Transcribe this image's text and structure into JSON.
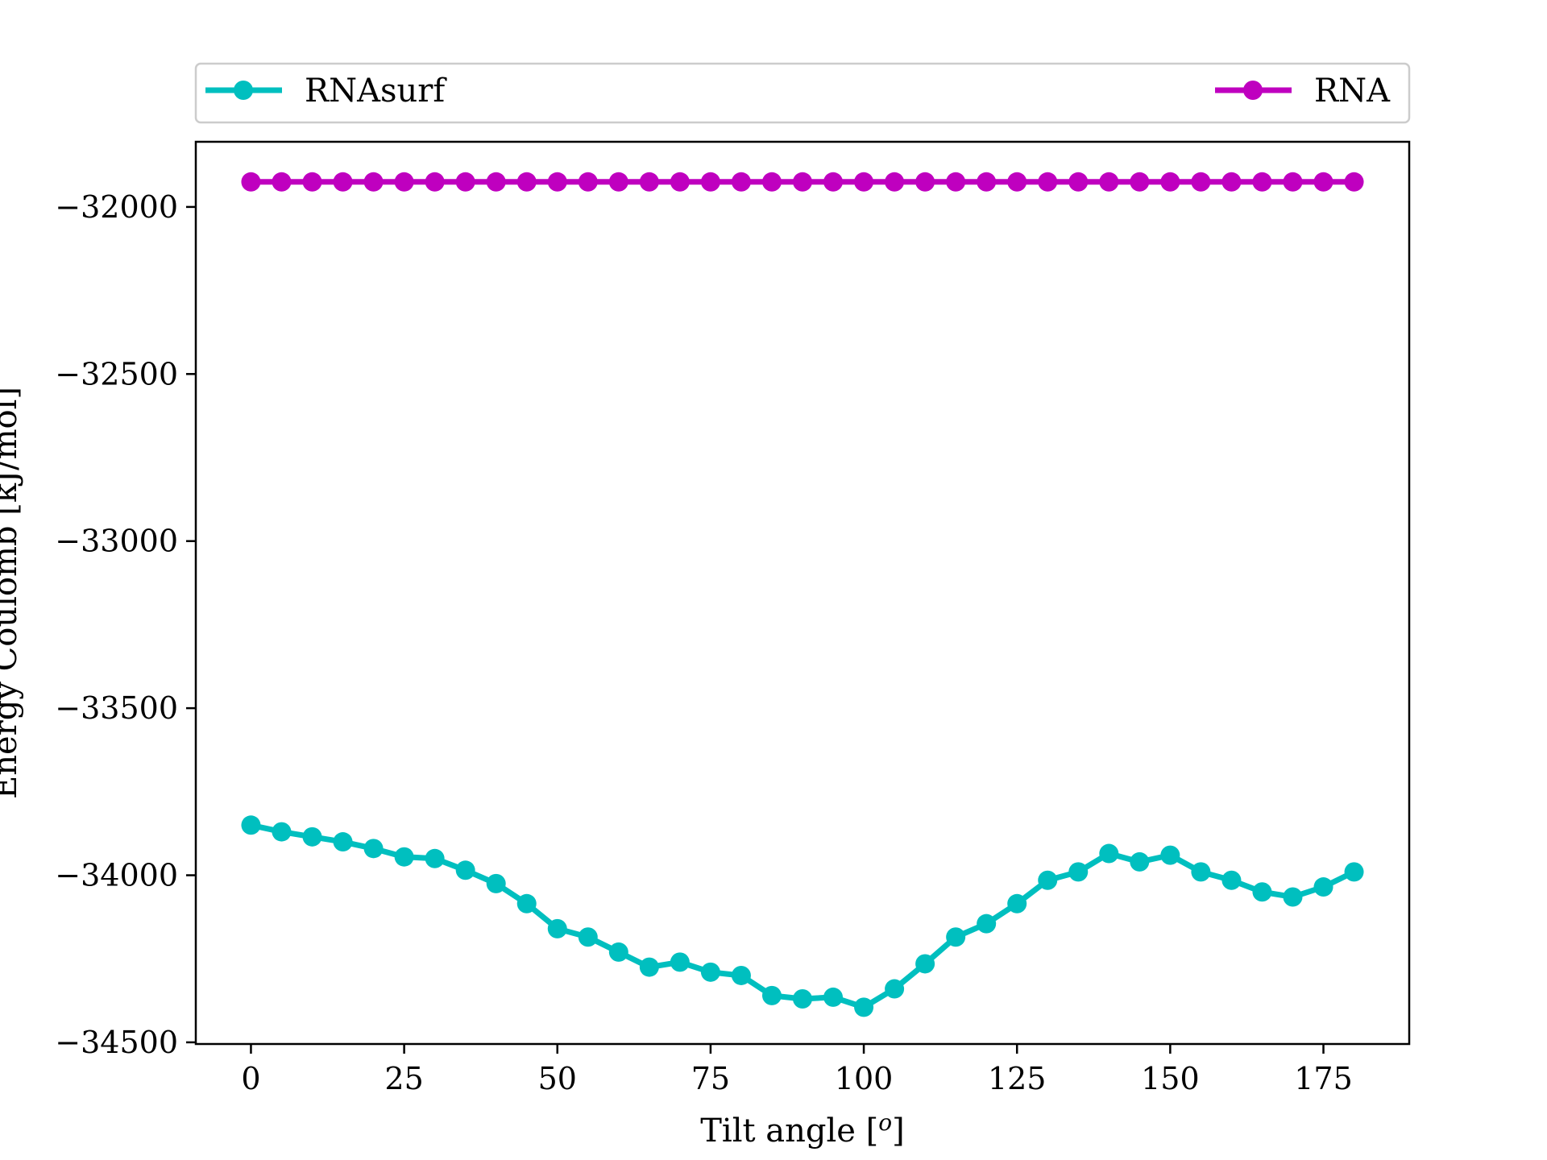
{
  "chart_data": {
    "type": "line",
    "title": "",
    "xlabel": "Tilt angle [$^o$]",
    "xlabel_parts": {
      "prefix": "Tilt angle [",
      "sup": "o",
      "suffix": "]"
    },
    "ylabel": "Energy Coulomb [kJ/mol]",
    "xlim": [
      -9,
      189
    ],
    "ylim": [
      -34505,
      -31805
    ],
    "xticks": [
      0,
      25,
      50,
      75,
      100,
      125,
      150,
      175
    ],
    "yticks": [
      -32000,
      -32500,
      -33000,
      -33500,
      -34000,
      -34500
    ],
    "ytick_labels": [
      "−32000",
      "−32500",
      "−33000",
      "−33500",
      "−34000",
      "−34500"
    ],
    "grid": false,
    "legend_placement": "top, above plot, expanded across full width",
    "x": [
      0,
      5,
      10,
      15,
      20,
      25,
      30,
      35,
      40,
      45,
      50,
      55,
      60,
      65,
      70,
      75,
      80,
      85,
      90,
      95,
      100,
      105,
      110,
      115,
      120,
      125,
      130,
      135,
      140,
      145,
      150,
      155,
      160,
      165,
      170,
      175,
      180
    ],
    "series": [
      {
        "name": "RNAsurf",
        "color": "#00bfbf",
        "marker": "circle",
        "values": [
          -33850,
          -33870,
          -33885,
          -33900,
          -33920,
          -33945,
          -33950,
          -33985,
          -34025,
          -34085,
          -34160,
          -34185,
          -34230,
          -34275,
          -34260,
          -34290,
          -34300,
          -34360,
          -34370,
          -34365,
          -34395,
          -34340,
          -34265,
          -34185,
          -34145,
          -34085,
          -34015,
          -33990,
          -33935,
          -33960,
          -33940,
          -33990,
          -34015,
          -34050,
          -34065,
          -34035,
          -33990
        ]
      },
      {
        "name": "RNA",
        "color": "#bf00bf",
        "marker": "circle",
        "values": [
          -31925,
          -31925,
          -31925,
          -31925,
          -31925,
          -31925,
          -31925,
          -31925,
          -31925,
          -31925,
          -31925,
          -31925,
          -31925,
          -31925,
          -31925,
          -31925,
          -31925,
          -31925,
          -31925,
          -31925,
          -31925,
          -31925,
          -31925,
          -31925,
          -31925,
          -31925,
          -31925,
          -31925,
          -31925,
          -31925,
          -31925,
          -31925,
          -31925,
          -31925,
          -31925,
          -31925,
          -31925
        ]
      }
    ]
  }
}
